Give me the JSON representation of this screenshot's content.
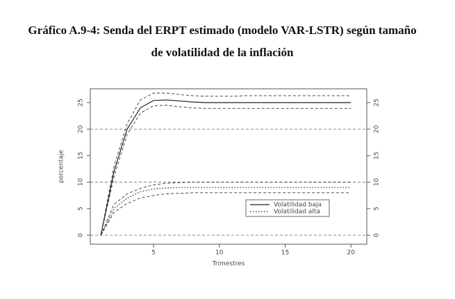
{
  "chart_data": {
    "type": "line",
    "title": "Gráfico A.9-4: Senda del ERPT estimado (modelo VAR-LSTR) según tamaño de volatilidad de la inflación",
    "xlabel": "Trimestres",
    "ylabel": "porcentaje",
    "x": [
      1,
      2,
      3,
      4,
      5,
      6,
      7,
      8,
      9,
      10,
      11,
      12,
      13,
      14,
      15,
      16,
      17,
      18,
      19,
      20
    ],
    "series": [
      {
        "name": "Volatilidad baja",
        "color": "#222222",
        "style": "solid",
        "values": [
          0,
          12,
          20,
          24,
          25.4,
          25.5,
          25.3,
          25.1,
          25,
          25,
          25,
          25,
          25,
          25,
          25,
          25,
          25,
          25,
          25,
          25
        ]
      },
      {
        "color": "#333333",
        "style": "dashed",
        "values": [
          0,
          13,
          21,
          25.5,
          26.8,
          26.8,
          26.5,
          26.3,
          26.2,
          26.2,
          26.2,
          26.3,
          26.3,
          26.3,
          26.3,
          26.3,
          26.3,
          26.3,
          26.3,
          26.3
        ]
      },
      {
        "color": "#333333",
        "style": "dashed",
        "values": [
          0,
          11,
          19,
          23,
          24.4,
          24.5,
          24.2,
          24,
          23.9,
          23.9,
          23.9,
          23.9,
          23.9,
          23.9,
          23.9,
          23.9,
          23.9,
          23.9,
          23.9,
          23.9
        ]
      },
      {
        "name": "Volatilidad alta",
        "color": "#222222",
        "style": "dotted",
        "values": [
          0,
          5,
          7,
          8.2,
          8.7,
          8.9,
          9,
          9,
          9,
          9,
          9,
          9,
          9,
          9,
          9,
          9,
          9,
          9,
          9,
          9
        ]
      },
      {
        "color": "#333333",
        "style": "dashed",
        "values": [
          0,
          5.8,
          7.8,
          8.8,
          9.5,
          9.8,
          9.9,
          10,
          10,
          10,
          10,
          10,
          10,
          10,
          10,
          10,
          10,
          10,
          10,
          10
        ]
      },
      {
        "color": "#333333",
        "style": "dashed",
        "values": [
          0,
          4.3,
          6,
          7,
          7.5,
          7.8,
          7.9,
          8,
          8,
          8,
          8,
          8,
          8,
          8,
          8,
          8,
          8,
          8,
          8,
          8
        ]
      }
    ],
    "hlines": [
      0,
      10,
      20
    ],
    "xlim": [
      0.2,
      21.2
    ],
    "xticks": [
      5,
      10,
      15,
      20
    ],
    "ylim": [
      -1.7,
      27.6
    ],
    "yticks": [
      0,
      5,
      10,
      15,
      20,
      25
    ]
  }
}
